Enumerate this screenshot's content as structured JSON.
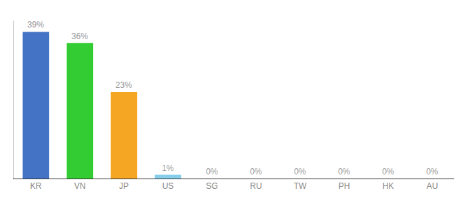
{
  "chart_data": {
    "type": "bar",
    "categories": [
      "KR",
      "VN",
      "JP",
      "US",
      "SG",
      "RU",
      "TW",
      "PH",
      "HK",
      "AU"
    ],
    "values": [
      39,
      36,
      23,
      1,
      0,
      0,
      0,
      0,
      0,
      0
    ],
    "value_labels": [
      "39%",
      "36%",
      "23%",
      "1%",
      "0%",
      "0%",
      "0%",
      "0%",
      "0%",
      "0%"
    ],
    "colors": [
      "#4472c4",
      "#33cc33",
      "#f5a623",
      "#87ceeb",
      "#87ceeb",
      "#87ceeb",
      "#87ceeb",
      "#87ceeb",
      "#87ceeb",
      "#87ceeb"
    ],
    "ylim": [
      0,
      42
    ],
    "grid": false,
    "data_labels": true,
    "tick_labels": "x"
  }
}
